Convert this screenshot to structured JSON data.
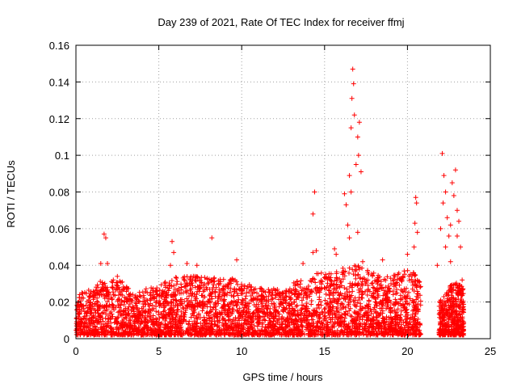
{
  "chart_data": {
    "type": "scatter",
    "title": "Day 239 of 2021, Rate Of TEC Index for receiver ffmj",
    "xlabel": "GPS time / hours",
    "ylabel": "ROTI / TECUs",
    "xlim": [
      0,
      25
    ],
    "ylim": [
      0,
      0.16
    ],
    "xticks": [
      0,
      5,
      10,
      15,
      20,
      25
    ],
    "xtick_labels": [
      "0",
      "5",
      "10",
      "15",
      "20",
      "25"
    ],
    "yticks": [
      0,
      0.02,
      0.04,
      0.06,
      0.08,
      0.1,
      0.12,
      0.14,
      0.16
    ],
    "ytick_labels": [
      "0",
      "0.02",
      "0.04",
      "0.06",
      "0.08",
      "0.1",
      "0.12",
      "0.14",
      "0.16"
    ],
    "grid": true,
    "marker": "+",
    "marker_color": "#ff0000",
    "series": [
      {
        "name": "ROTI",
        "envelope": [
          {
            "x": 0.0,
            "y": 0.022
          },
          {
            "x": 0.5,
            "y": 0.028
          },
          {
            "x": 1.0,
            "y": 0.026
          },
          {
            "x": 1.5,
            "y": 0.032
          },
          {
            "x": 2.0,
            "y": 0.03
          },
          {
            "x": 2.5,
            "y": 0.034
          },
          {
            "x": 3.0,
            "y": 0.03
          },
          {
            "x": 3.5,
            "y": 0.024
          },
          {
            "x": 4.0,
            "y": 0.027
          },
          {
            "x": 4.5,
            "y": 0.028
          },
          {
            "x": 5.0,
            "y": 0.029
          },
          {
            "x": 5.5,
            "y": 0.032
          },
          {
            "x": 6.0,
            "y": 0.034
          },
          {
            "x": 6.5,
            "y": 0.034
          },
          {
            "x": 7.0,
            "y": 0.035
          },
          {
            "x": 7.5,
            "y": 0.034
          },
          {
            "x": 8.0,
            "y": 0.033
          },
          {
            "x": 8.5,
            "y": 0.034
          },
          {
            "x": 9.0,
            "y": 0.032
          },
          {
            "x": 9.5,
            "y": 0.034
          },
          {
            "x": 10.0,
            "y": 0.03
          },
          {
            "x": 10.5,
            "y": 0.03
          },
          {
            "x": 11.0,
            "y": 0.028
          },
          {
            "x": 11.5,
            "y": 0.027
          },
          {
            "x": 12.0,
            "y": 0.028
          },
          {
            "x": 12.5,
            "y": 0.028
          },
          {
            "x": 13.0,
            "y": 0.03
          },
          {
            "x": 13.5,
            "y": 0.032
          },
          {
            "x": 14.0,
            "y": 0.034
          },
          {
            "x": 14.5,
            "y": 0.036
          },
          {
            "x": 15.0,
            "y": 0.036
          },
          {
            "x": 15.5,
            "y": 0.036
          },
          {
            "x": 16.0,
            "y": 0.038
          },
          {
            "x": 16.5,
            "y": 0.04
          },
          {
            "x": 17.0,
            "y": 0.04
          },
          {
            "x": 17.5,
            "y": 0.038
          },
          {
            "x": 18.0,
            "y": 0.036
          },
          {
            "x": 18.5,
            "y": 0.034
          },
          {
            "x": 19.0,
            "y": 0.034
          },
          {
            "x": 19.5,
            "y": 0.036
          },
          {
            "x": 20.0,
            "y": 0.038
          },
          {
            "x": 20.5,
            "y": 0.036
          },
          {
            "x": 20.8,
            "y": 0.03
          }
        ],
        "segment2_envelope": [
          {
            "x": 21.9,
            "y": 0.02
          },
          {
            "x": 22.2,
            "y": 0.024
          },
          {
            "x": 22.5,
            "y": 0.03
          },
          {
            "x": 22.8,
            "y": 0.032
          },
          {
            "x": 23.1,
            "y": 0.03
          },
          {
            "x": 23.4,
            "y": 0.028
          }
        ],
        "spikes": [
          {
            "x": 1.5,
            "y": 0.041
          },
          {
            "x": 1.7,
            "y": 0.057
          },
          {
            "x": 1.8,
            "y": 0.055
          },
          {
            "x": 1.9,
            "y": 0.041
          },
          {
            "x": 2.5,
            "y": 0.034
          },
          {
            "x": 5.8,
            "y": 0.053
          },
          {
            "x": 5.9,
            "y": 0.047
          },
          {
            "x": 5.7,
            "y": 0.04
          },
          {
            "x": 6.7,
            "y": 0.041
          },
          {
            "x": 7.3,
            "y": 0.04
          },
          {
            "x": 8.2,
            "y": 0.055
          },
          {
            "x": 9.7,
            "y": 0.043
          },
          {
            "x": 13.7,
            "y": 0.041
          },
          {
            "x": 14.4,
            "y": 0.08
          },
          {
            "x": 14.3,
            "y": 0.068
          },
          {
            "x": 14.5,
            "y": 0.048
          },
          {
            "x": 14.3,
            "y": 0.047
          },
          {
            "x": 15.6,
            "y": 0.049
          },
          {
            "x": 15.7,
            "y": 0.046
          },
          {
            "x": 16.2,
            "y": 0.079
          },
          {
            "x": 16.3,
            "y": 0.073
          },
          {
            "x": 16.5,
            "y": 0.089
          },
          {
            "x": 16.6,
            "y": 0.08
          },
          {
            "x": 16.7,
            "y": 0.147
          },
          {
            "x": 16.75,
            "y": 0.139
          },
          {
            "x": 16.65,
            "y": 0.131
          },
          {
            "x": 16.6,
            "y": 0.115
          },
          {
            "x": 16.8,
            "y": 0.122
          },
          {
            "x": 16.9,
            "y": 0.095
          },
          {
            "x": 17.0,
            "y": 0.11
          },
          {
            "x": 17.1,
            "y": 0.118
          },
          {
            "x": 17.05,
            "y": 0.1
          },
          {
            "x": 17.2,
            "y": 0.091
          },
          {
            "x": 16.4,
            "y": 0.062
          },
          {
            "x": 16.5,
            "y": 0.055
          },
          {
            "x": 17.0,
            "y": 0.058
          },
          {
            "x": 17.3,
            "y": 0.042
          },
          {
            "x": 18.5,
            "y": 0.043
          },
          {
            "x": 20.0,
            "y": 0.046
          },
          {
            "x": 20.5,
            "y": 0.077
          },
          {
            "x": 20.55,
            "y": 0.074
          },
          {
            "x": 20.45,
            "y": 0.063
          },
          {
            "x": 20.6,
            "y": 0.058
          },
          {
            "x": 20.4,
            "y": 0.05
          },
          {
            "x": 22.1,
            "y": 0.101
          },
          {
            "x": 22.2,
            "y": 0.089
          },
          {
            "x": 22.3,
            "y": 0.08
          },
          {
            "x": 22.15,
            "y": 0.074
          },
          {
            "x": 22.4,
            "y": 0.066
          },
          {
            "x": 22.0,
            "y": 0.06
          },
          {
            "x": 22.5,
            "y": 0.056
          },
          {
            "x": 22.6,
            "y": 0.062
          },
          {
            "x": 22.7,
            "y": 0.085
          },
          {
            "x": 22.9,
            "y": 0.092
          },
          {
            "x": 22.8,
            "y": 0.078
          },
          {
            "x": 23.0,
            "y": 0.07
          },
          {
            "x": 23.1,
            "y": 0.064
          },
          {
            "x": 23.0,
            "y": 0.056
          },
          {
            "x": 23.2,
            "y": 0.05
          },
          {
            "x": 22.3,
            "y": 0.05
          },
          {
            "x": 21.8,
            "y": 0.04
          },
          {
            "x": 22.6,
            "y": 0.042
          },
          {
            "x": 23.3,
            "y": 0.032
          }
        ]
      }
    ]
  }
}
